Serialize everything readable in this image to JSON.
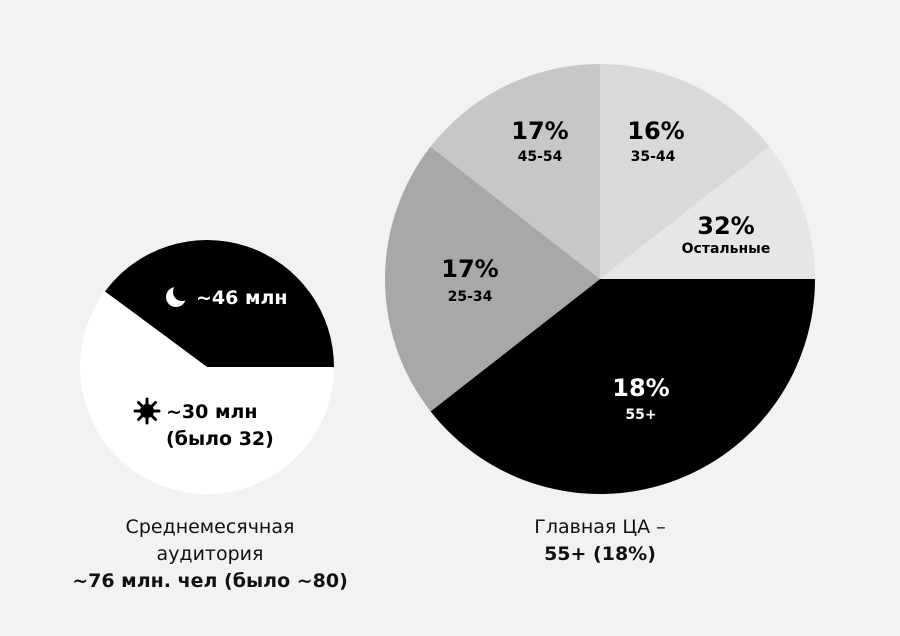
{
  "chart_data": [
    {
      "type": "pie",
      "slices": [
        {
          "label": "~46 млн",
          "icon": "moon-icon",
          "color": "#000000",
          "text_color": "#ffffff"
        },
        {
          "label": "~30 млн",
          "label2": "(было 32)",
          "icon": "sun-icon",
          "color": "#ffffff",
          "text_color": "#000000"
        }
      ],
      "caption": {
        "line1": "Среднемесячная",
        "line2": "аудитория",
        "line3": "~76 млн. чел (было ~80)"
      }
    },
    {
      "type": "pie",
      "slices": [
        {
          "label": "35-44",
          "pct_label": "16%",
          "color": "#d9d9d9"
        },
        {
          "label": "Остальные",
          "pct_label": "32%",
          "color": "#e6e6e6"
        },
        {
          "label": "55+",
          "pct_label": "18%",
          "color": "#000000"
        },
        {
          "label": "25-34",
          "pct_label": "17%",
          "color": "#a8a8a8"
        },
        {
          "label": "45-54",
          "pct_label": "17%",
          "color": "#c7c7c7"
        }
      ],
      "caption": {
        "line1": "Главная ЦА –",
        "line2": "55+ (18%)"
      }
    }
  ]
}
